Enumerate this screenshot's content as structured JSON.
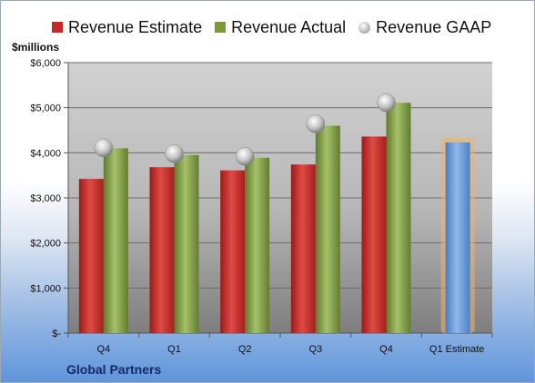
{
  "legend": [
    {
      "label": "Revenue Estimate",
      "color": "#c62828",
      "shape": "square"
    },
    {
      "label": "Revenue Actual",
      "color": "#7a9a3a",
      "shape": "square"
    },
    {
      "label": "Revenue GAAP",
      "color": "#b8b8b8",
      "shape": "circle"
    }
  ],
  "unit_label": "$millions",
  "company": "Global Partners",
  "colors": {
    "estimate": "#d23a36",
    "actual": "#8eaa52",
    "gaap": "#c8c8c8",
    "forecast": "#6f9fd8",
    "forecast_glow": "#f5b15a"
  },
  "chart_data": {
    "type": "bar",
    "categories": [
      "Q4",
      "Q1",
      "Q2",
      "Q3",
      "Q4",
      "Q1 Estimate"
    ],
    "ylabel": "$millions",
    "ylim": [
      0,
      6000
    ],
    "ytick_labels": [
      "$-",
      "$1,000",
      "$2,000",
      "$3,000",
      "$4,000",
      "$5,000",
      "$6,000"
    ],
    "ytick_values": [
      0,
      1000,
      2000,
      3000,
      4000,
      5000,
      6000
    ],
    "grid": true,
    "legend_position": "top",
    "series": [
      {
        "name": "Revenue Estimate",
        "type": "bar",
        "values": [
          3420,
          3680,
          3610,
          3740,
          4360,
          null
        ]
      },
      {
        "name": "Revenue Actual",
        "type": "bar",
        "values": [
          4100,
          3950,
          3890,
          4600,
          5110,
          null
        ]
      },
      {
        "name": "Revenue GAAP",
        "type": "scatter",
        "values": [
          4110,
          3980,
          3920,
          4640,
          5110,
          null
        ]
      },
      {
        "name": "",
        "type": "bar",
        "values": [
          null,
          null,
          null,
          null,
          null,
          4230
        ]
      }
    ]
  }
}
